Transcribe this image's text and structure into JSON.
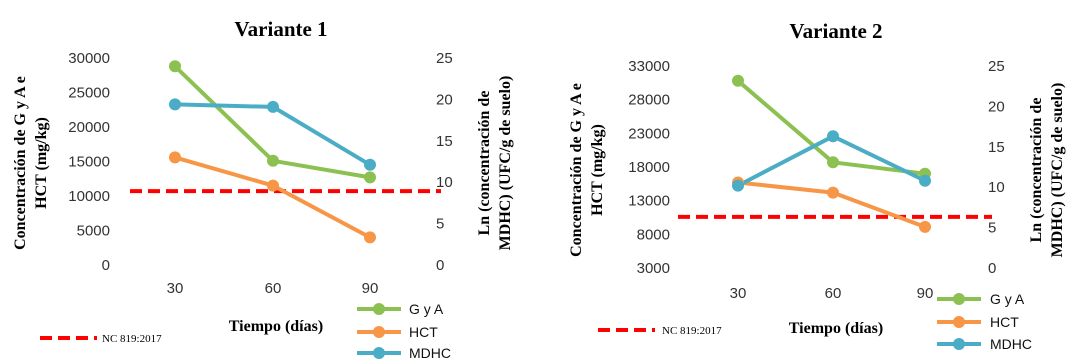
{
  "chart_data": [
    {
      "type": "line",
      "title": "Variante 1",
      "xlabel": "Tiempo (días)",
      "ylabel": "Concentración de G y A e HCT (mg/kg)",
      "y2label": "Ln (concentración de MDHC) (UFC/g de suelo)",
      "categories": [
        "30",
        "60",
        "90"
      ],
      "ylim": [
        0,
        30000
      ],
      "yticks": [
        "0",
        "5000",
        "10000",
        "15000",
        "20000",
        "25000",
        "30000"
      ],
      "y2lim": [
        0,
        25
      ],
      "y2ticks": [
        "0",
        "5",
        "10",
        "15",
        "20",
        "25"
      ],
      "series": [
        {
          "name": "G y A",
          "axis": "left",
          "color": "#8cc152",
          "values": [
            28800,
            15100,
            12700
          ]
        },
        {
          "name": "HCT",
          "axis": "left",
          "color": "#f79646",
          "values": [
            15600,
            11500,
            4000
          ]
        },
        {
          "name": "MDHC",
          "axis": "right",
          "color": "#4bacc6",
          "values": [
            19.4,
            19.1,
            12.1
          ]
        }
      ],
      "reference": {
        "name": "NC 819:2017",
        "color": "#ff0000",
        "value": 10700
      }
    },
    {
      "type": "line",
      "title": "Variante  2",
      "xlabel": "Tiempo (días)",
      "ylabel": "Concentración de G y A e HCT (mg/kg)",
      "y2label": "Ln (concentración de MDHC) (UFC/g de suelo)",
      "categories": [
        "30",
        "60",
        "90"
      ],
      "ylim": [
        3000,
        33000
      ],
      "yticks": [
        "3000",
        "8000",
        "13000",
        "18000",
        "23000",
        "28000",
        "33000"
      ],
      "y2lim": [
        0,
        25
      ],
      "y2ticks": [
        "0",
        "5",
        "10",
        "15",
        "20",
        "25"
      ],
      "series": [
        {
          "name": "G y A",
          "axis": "left",
          "color": "#8cc152",
          "values": [
            30800,
            18700,
            17000
          ]
        },
        {
          "name": "HCT",
          "axis": "left",
          "color": "#f79646",
          "values": [
            15700,
            14200,
            9100
          ]
        },
        {
          "name": "MDHC",
          "axis": "right",
          "color": "#4bacc6",
          "values": [
            10.2,
            16.3,
            10.8
          ]
        }
      ],
      "reference": {
        "name": "NC 819:2017",
        "color": "#ff0000",
        "value": 10600
      }
    }
  ]
}
